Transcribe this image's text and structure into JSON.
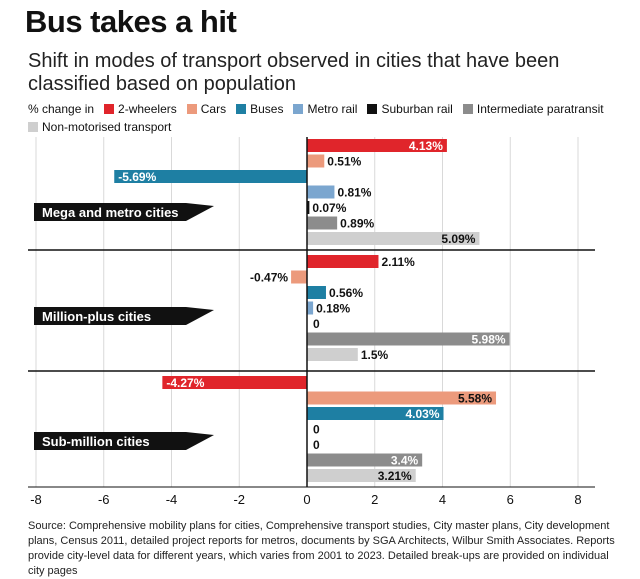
{
  "title": "Bus takes a hit",
  "subtitle": "Shift in modes of transport observed in cities that have been classified based on population",
  "legend_prefix": "% change in",
  "source": "Source: Comprehensive mobility plans for cities, Comprehensive transport studies, City master plans, City development plans, Census 2011, detailed project reports for metros, documents by SGA Architects, Wilbur Smith Associates. Reports provide city-level data for different years, which varies from 2001 to 2023. Detailed break-ups are provided on individual city pages",
  "colors": {
    "2-wheelers": "#e0252b",
    "Cars": "#ec9a7c",
    "Buses": "#1e7fa3",
    "Metro rail": "#7ba6cf",
    "Suburban rail": "#111111",
    "Intermediate paratransit": "#8c8c8c",
    "Non-motorised transport": "#cfcfcf"
  },
  "chart_data": {
    "type": "bar",
    "orientation": "horizontal",
    "modes": [
      "2-wheelers",
      "Cars",
      "Buses",
      "Metro rail",
      "Suburban rail",
      "Intermediate paratransit",
      "Non-motorised transport"
    ],
    "groups": [
      {
        "name": "Mega and metro cities",
        "values": [
          4.13,
          0.51,
          -5.69,
          0.81,
          0.07,
          0.89,
          5.09
        ],
        "labels": [
          "4.13%",
          "0.51%",
          "-5.69%",
          "0.81%",
          "0.07%",
          "0.89%",
          "5.09%"
        ]
      },
      {
        "name": "Million-plus cities",
        "values": [
          2.11,
          -0.47,
          0.56,
          0.18,
          0,
          5.98,
          1.5
        ],
        "labels": [
          "2.11%",
          "-0.47%",
          "0.56%",
          "0.18%",
          "0",
          "5.98%",
          "1.5%"
        ]
      },
      {
        "name": "Sub-million cities",
        "values": [
          -4.27,
          5.58,
          4.03,
          0,
          0,
          3.4,
          3.21
        ],
        "labels": [
          "-4.27%",
          "5.58%",
          "4.03%",
          "0",
          "0",
          "3.4%",
          "3.21%"
        ]
      }
    ],
    "xlim": [
      -8,
      8
    ],
    "xticks": [
      -8,
      -6,
      -4,
      -2,
      0,
      2,
      4,
      6,
      8
    ],
    "grid": true,
    "legend_position": "top"
  }
}
